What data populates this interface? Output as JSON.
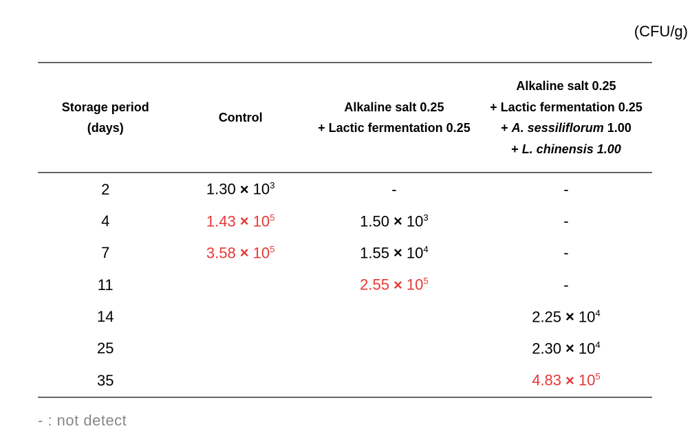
{
  "unit_label": "(CFU/g)",
  "header": {
    "col1_line1": "Storage period",
    "col1_line2": "(days)",
    "col2": "Control",
    "col3_line1": "Alkaline salt 0.25",
    "col3_line2": "+ Lactic fermentation 0.25",
    "col4_line1": "Alkaline salt 0.25",
    "col4_line2": "+ Lactic fermentation 0.25",
    "col4_line3_prefix": "+ ",
    "col4_line3_italic": "A. sessiliflorum",
    "col4_line3_suffix": " 1.00",
    "col4_line4_prefix": "+ ",
    "col4_line4_italic": "L. chinensis 1.00"
  },
  "dash": "-",
  "footnote": "- : not detect",
  "colors": {
    "background": "#ffffff",
    "text": "#000000",
    "highlight": "#e53935",
    "footnote": "#888888",
    "rule": "#666666"
  },
  "rows": [
    {
      "day": "2",
      "control": {
        "coef": "1.30",
        "exp": "3",
        "highlight": false
      },
      "alk": null,
      "alk_plus": null
    },
    {
      "day": "4",
      "control": {
        "coef": "1.43",
        "exp": "5",
        "highlight": true
      },
      "alk": {
        "coef": "1.50",
        "exp": "3",
        "highlight": false
      },
      "alk_plus": null
    },
    {
      "day": "7",
      "control": {
        "coef": "3.58",
        "exp": "5",
        "highlight": true
      },
      "alk": {
        "coef": "1.55",
        "exp": "4",
        "highlight": false
      },
      "alk_plus": null
    },
    {
      "day": "11",
      "control_blank": true,
      "alk": {
        "coef": "2.55",
        "exp": "5",
        "highlight": true
      },
      "alk_plus": null
    },
    {
      "day": "14",
      "control_blank": true,
      "alk_blank": true,
      "alk_plus": {
        "coef": "2.25",
        "exp": "4",
        "highlight": false
      }
    },
    {
      "day": "25",
      "control_blank": true,
      "alk_blank": true,
      "alk_plus": {
        "coef": "2.30",
        "exp": "4",
        "highlight": false
      }
    },
    {
      "day": "35",
      "control_blank": true,
      "alk_blank": true,
      "alk_plus": {
        "coef": "4.83",
        "exp": "5",
        "highlight": true
      }
    }
  ]
}
